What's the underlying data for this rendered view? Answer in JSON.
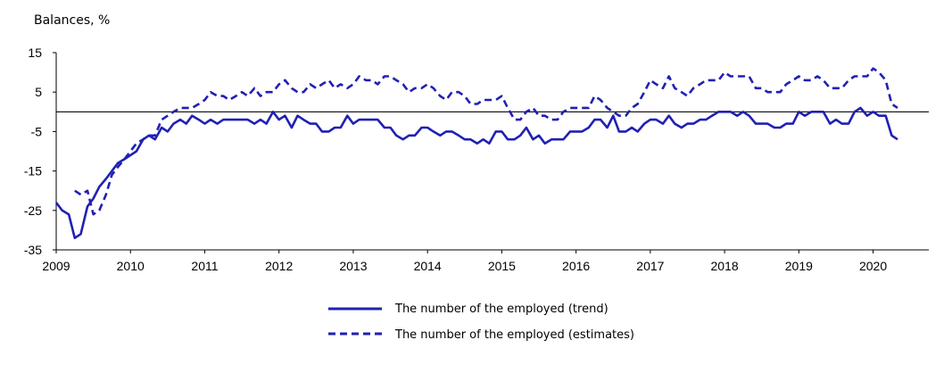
{
  "chart_data": {
    "type": "line",
    "title": "",
    "ylabel": "Balances, %",
    "xlabel": "",
    "ylim": [
      -35,
      15
    ],
    "xlim": [
      2009,
      2020.75
    ],
    "y_ticks": [
      "15",
      "5",
      "-5",
      "-15",
      "-25",
      "-35"
    ],
    "y_tick_values": [
      15,
      5,
      -5,
      -15,
      -25,
      -35
    ],
    "x_ticks": [
      "2009",
      "2010",
      "2011",
      "2012",
      "2013",
      "2014",
      "2015",
      "2016",
      "2017",
      "2018",
      "2019",
      "2020"
    ],
    "x_tick_values": [
      2009,
      2010,
      2011,
      2012,
      2013,
      2014,
      2015,
      2016,
      2017,
      2018,
      2019,
      2020
    ],
    "reference_line": 0,
    "grid": false,
    "legend_position": "bottom",
    "color": "#2020b4",
    "series": [
      {
        "name": "The number of the employed (trend)",
        "style": "solid",
        "points": [
          [
            2009.0,
            -23
          ],
          [
            2009.08,
            -25
          ],
          [
            2009.17,
            -26
          ],
          [
            2009.25,
            -32
          ],
          [
            2009.33,
            -31
          ],
          [
            2009.42,
            -24
          ],
          [
            2009.5,
            -22
          ],
          [
            2009.58,
            -19
          ],
          [
            2009.67,
            -17
          ],
          [
            2009.75,
            -15
          ],
          [
            2009.83,
            -13
          ],
          [
            2009.92,
            -12
          ],
          [
            2010.0,
            -11
          ],
          [
            2010.08,
            -10
          ],
          [
            2010.17,
            -7
          ],
          [
            2010.25,
            -6
          ],
          [
            2010.33,
            -7
          ],
          [
            2010.42,
            -4
          ],
          [
            2010.5,
            -5
          ],
          [
            2010.58,
            -3
          ],
          [
            2010.67,
            -2
          ],
          [
            2010.75,
            -3
          ],
          [
            2010.83,
            -1
          ],
          [
            2010.92,
            -2
          ],
          [
            2011.0,
            -3
          ],
          [
            2011.08,
            -2
          ],
          [
            2011.17,
            -3
          ],
          [
            2011.25,
            -2
          ],
          [
            2011.33,
            -2
          ],
          [
            2011.42,
            -2
          ],
          [
            2011.5,
            -2
          ],
          [
            2011.58,
            -2
          ],
          [
            2011.67,
            -3
          ],
          [
            2011.75,
            -2
          ],
          [
            2011.83,
            -3
          ],
          [
            2011.92,
            0
          ],
          [
            2012.0,
            -2
          ],
          [
            2012.08,
            -1
          ],
          [
            2012.17,
            -4
          ],
          [
            2012.25,
            -1
          ],
          [
            2012.33,
            -2
          ],
          [
            2012.42,
            -3
          ],
          [
            2012.5,
            -3
          ],
          [
            2012.58,
            -5
          ],
          [
            2012.67,
            -5
          ],
          [
            2012.75,
            -4
          ],
          [
            2012.83,
            -4
          ],
          [
            2012.92,
            -1
          ],
          [
            2013.0,
            -3
          ],
          [
            2013.08,
            -2
          ],
          [
            2013.17,
            -2
          ],
          [
            2013.25,
            -2
          ],
          [
            2013.33,
            -2
          ],
          [
            2013.42,
            -4
          ],
          [
            2013.5,
            -4
          ],
          [
            2013.58,
            -6
          ],
          [
            2013.67,
            -7
          ],
          [
            2013.75,
            -6
          ],
          [
            2013.83,
            -6
          ],
          [
            2013.92,
            -4
          ],
          [
            2014.0,
            -4
          ],
          [
            2014.08,
            -5
          ],
          [
            2014.17,
            -6
          ],
          [
            2014.25,
            -5
          ],
          [
            2014.33,
            -5
          ],
          [
            2014.42,
            -6
          ],
          [
            2014.5,
            -7
          ],
          [
            2014.58,
            -7
          ],
          [
            2014.67,
            -8
          ],
          [
            2014.75,
            -7
          ],
          [
            2014.83,
            -8
          ],
          [
            2014.92,
            -5
          ],
          [
            2015.0,
            -5
          ],
          [
            2015.08,
            -7
          ],
          [
            2015.17,
            -7
          ],
          [
            2015.25,
            -6
          ],
          [
            2015.33,
            -4
          ],
          [
            2015.42,
            -7
          ],
          [
            2015.5,
            -6
          ],
          [
            2015.58,
            -8
          ],
          [
            2015.67,
            -7
          ],
          [
            2015.75,
            -7
          ],
          [
            2015.83,
            -7
          ],
          [
            2015.92,
            -5
          ],
          [
            2016.0,
            -5
          ],
          [
            2016.08,
            -5
          ],
          [
            2016.17,
            -4
          ],
          [
            2016.25,
            -2
          ],
          [
            2016.33,
            -2
          ],
          [
            2016.42,
            -4
          ],
          [
            2016.5,
            -1
          ],
          [
            2016.58,
            -5
          ],
          [
            2016.67,
            -5
          ],
          [
            2016.75,
            -4
          ],
          [
            2016.83,
            -5
          ],
          [
            2016.92,
            -3
          ],
          [
            2017.0,
            -2
          ],
          [
            2017.08,
            -2
          ],
          [
            2017.17,
            -3
          ],
          [
            2017.25,
            -1
          ],
          [
            2017.33,
            -3
          ],
          [
            2017.42,
            -4
          ],
          [
            2017.5,
            -3
          ],
          [
            2017.58,
            -3
          ],
          [
            2017.67,
            -2
          ],
          [
            2017.75,
            -2
          ],
          [
            2017.83,
            -1
          ],
          [
            2017.92,
            0
          ],
          [
            2018.0,
            0
          ],
          [
            2018.08,
            0
          ],
          [
            2018.17,
            -1
          ],
          [
            2018.25,
            0
          ],
          [
            2018.33,
            -1
          ],
          [
            2018.42,
            -3
          ],
          [
            2018.5,
            -3
          ],
          [
            2018.58,
            -3
          ],
          [
            2018.67,
            -4
          ],
          [
            2018.75,
            -4
          ],
          [
            2018.83,
            -3
          ],
          [
            2018.92,
            -3
          ],
          [
            2019.0,
            0
          ],
          [
            2019.08,
            -1
          ],
          [
            2019.17,
            0
          ],
          [
            2019.25,
            0
          ],
          [
            2019.33,
            0
          ],
          [
            2019.42,
            -3
          ],
          [
            2019.5,
            -2
          ],
          [
            2019.58,
            -3
          ],
          [
            2019.67,
            -3
          ],
          [
            2019.75,
            0
          ],
          [
            2019.83,
            1
          ],
          [
            2019.92,
            -1
          ],
          [
            2020.0,
            0
          ],
          [
            2020.08,
            -1
          ],
          [
            2020.17,
            -1
          ],
          [
            2020.25,
            -6
          ],
          [
            2020.33,
            -7
          ]
        ]
      },
      {
        "name": "The number of the employed (estimates)",
        "style": "dashed",
        "points": [
          [
            2009.25,
            -20
          ],
          [
            2009.33,
            -21
          ],
          [
            2009.42,
            -20
          ],
          [
            2009.5,
            -26
          ],
          [
            2009.58,
            -25
          ],
          [
            2009.67,
            -21
          ],
          [
            2009.75,
            -16
          ],
          [
            2009.83,
            -14
          ],
          [
            2009.92,
            -12
          ],
          [
            2010.0,
            -10
          ],
          [
            2010.08,
            -8
          ],
          [
            2010.17,
            -7
          ],
          [
            2010.25,
            -6
          ],
          [
            2010.33,
            -6
          ],
          [
            2010.42,
            -2
          ],
          [
            2010.5,
            -1
          ],
          [
            2010.58,
            0
          ],
          [
            2010.67,
            1
          ],
          [
            2010.75,
            1
          ],
          [
            2010.83,
            1
          ],
          [
            2010.92,
            2
          ],
          [
            2011.0,
            3
          ],
          [
            2011.08,
            5
          ],
          [
            2011.17,
            4
          ],
          [
            2011.25,
            4
          ],
          [
            2011.33,
            3
          ],
          [
            2011.42,
            4
          ],
          [
            2011.5,
            5
          ],
          [
            2011.58,
            4
          ],
          [
            2011.67,
            6
          ],
          [
            2011.75,
            4
          ],
          [
            2011.83,
            5
          ],
          [
            2011.92,
            5
          ],
          [
            2012.0,
            7
          ],
          [
            2012.08,
            8
          ],
          [
            2012.17,
            6
          ],
          [
            2012.25,
            5
          ],
          [
            2012.33,
            5
          ],
          [
            2012.42,
            7
          ],
          [
            2012.5,
            6
          ],
          [
            2012.58,
            7
          ],
          [
            2012.67,
            8
          ],
          [
            2012.75,
            6
          ],
          [
            2012.83,
            7
          ],
          [
            2012.92,
            6
          ],
          [
            2013.0,
            7
          ],
          [
            2013.08,
            9
          ],
          [
            2013.17,
            8
          ],
          [
            2013.25,
            8
          ],
          [
            2013.33,
            7
          ],
          [
            2013.42,
            9
          ],
          [
            2013.5,
            9
          ],
          [
            2013.58,
            8
          ],
          [
            2013.67,
            7
          ],
          [
            2013.75,
            5
          ],
          [
            2013.83,
            6
          ],
          [
            2013.92,
            6
          ],
          [
            2014.0,
            7
          ],
          [
            2014.08,
            6
          ],
          [
            2014.17,
            4
          ],
          [
            2014.25,
            3
          ],
          [
            2014.33,
            5
          ],
          [
            2014.42,
            5
          ],
          [
            2014.5,
            4
          ],
          [
            2014.58,
            2
          ],
          [
            2014.67,
            2
          ],
          [
            2014.75,
            3
          ],
          [
            2014.83,
            3
          ],
          [
            2014.92,
            3
          ],
          [
            2015.0,
            4
          ],
          [
            2015.08,
            1
          ],
          [
            2015.17,
            -2
          ],
          [
            2015.25,
            -2
          ],
          [
            2015.33,
            0
          ],
          [
            2015.42,
            1
          ],
          [
            2015.5,
            -1
          ],
          [
            2015.58,
            -1
          ],
          [
            2015.67,
            -2
          ],
          [
            2015.75,
            -2
          ],
          [
            2015.83,
            0
          ],
          [
            2015.92,
            1
          ],
          [
            2016.0,
            1
          ],
          [
            2016.08,
            1
          ],
          [
            2016.17,
            1
          ],
          [
            2016.25,
            4
          ],
          [
            2016.33,
            3
          ],
          [
            2016.42,
            1
          ],
          [
            2016.5,
            0
          ],
          [
            2016.58,
            -1
          ],
          [
            2016.67,
            -1
          ],
          [
            2016.75,
            1
          ],
          [
            2016.83,
            2
          ],
          [
            2016.92,
            5
          ],
          [
            2017.0,
            8
          ],
          [
            2017.08,
            7
          ],
          [
            2017.17,
            6
          ],
          [
            2017.25,
            9
          ],
          [
            2017.33,
            6
          ],
          [
            2017.42,
            5
          ],
          [
            2017.5,
            4
          ],
          [
            2017.58,
            6
          ],
          [
            2017.67,
            7
          ],
          [
            2017.75,
            8
          ],
          [
            2017.83,
            8
          ],
          [
            2017.92,
            8
          ],
          [
            2018.0,
            10
          ],
          [
            2018.08,
            9
          ],
          [
            2018.17,
            9
          ],
          [
            2018.25,
            9
          ],
          [
            2018.33,
            9
          ],
          [
            2018.42,
            6
          ],
          [
            2018.5,
            6
          ],
          [
            2018.58,
            5
          ],
          [
            2018.67,
            5
          ],
          [
            2018.75,
            5
          ],
          [
            2018.83,
            7
          ],
          [
            2018.92,
            8
          ],
          [
            2019.0,
            9
          ],
          [
            2019.08,
            8
          ],
          [
            2019.17,
            8
          ],
          [
            2019.25,
            9
          ],
          [
            2019.33,
            8
          ],
          [
            2019.42,
            6
          ],
          [
            2019.5,
            6
          ],
          [
            2019.58,
            6
          ],
          [
            2019.67,
            8
          ],
          [
            2019.75,
            9
          ],
          [
            2019.83,
            9
          ],
          [
            2019.92,
            9
          ],
          [
            2020.0,
            11
          ],
          [
            2020.08,
            10
          ],
          [
            2020.17,
            8
          ],
          [
            2020.25,
            2
          ],
          [
            2020.33,
            1
          ]
        ]
      }
    ]
  }
}
